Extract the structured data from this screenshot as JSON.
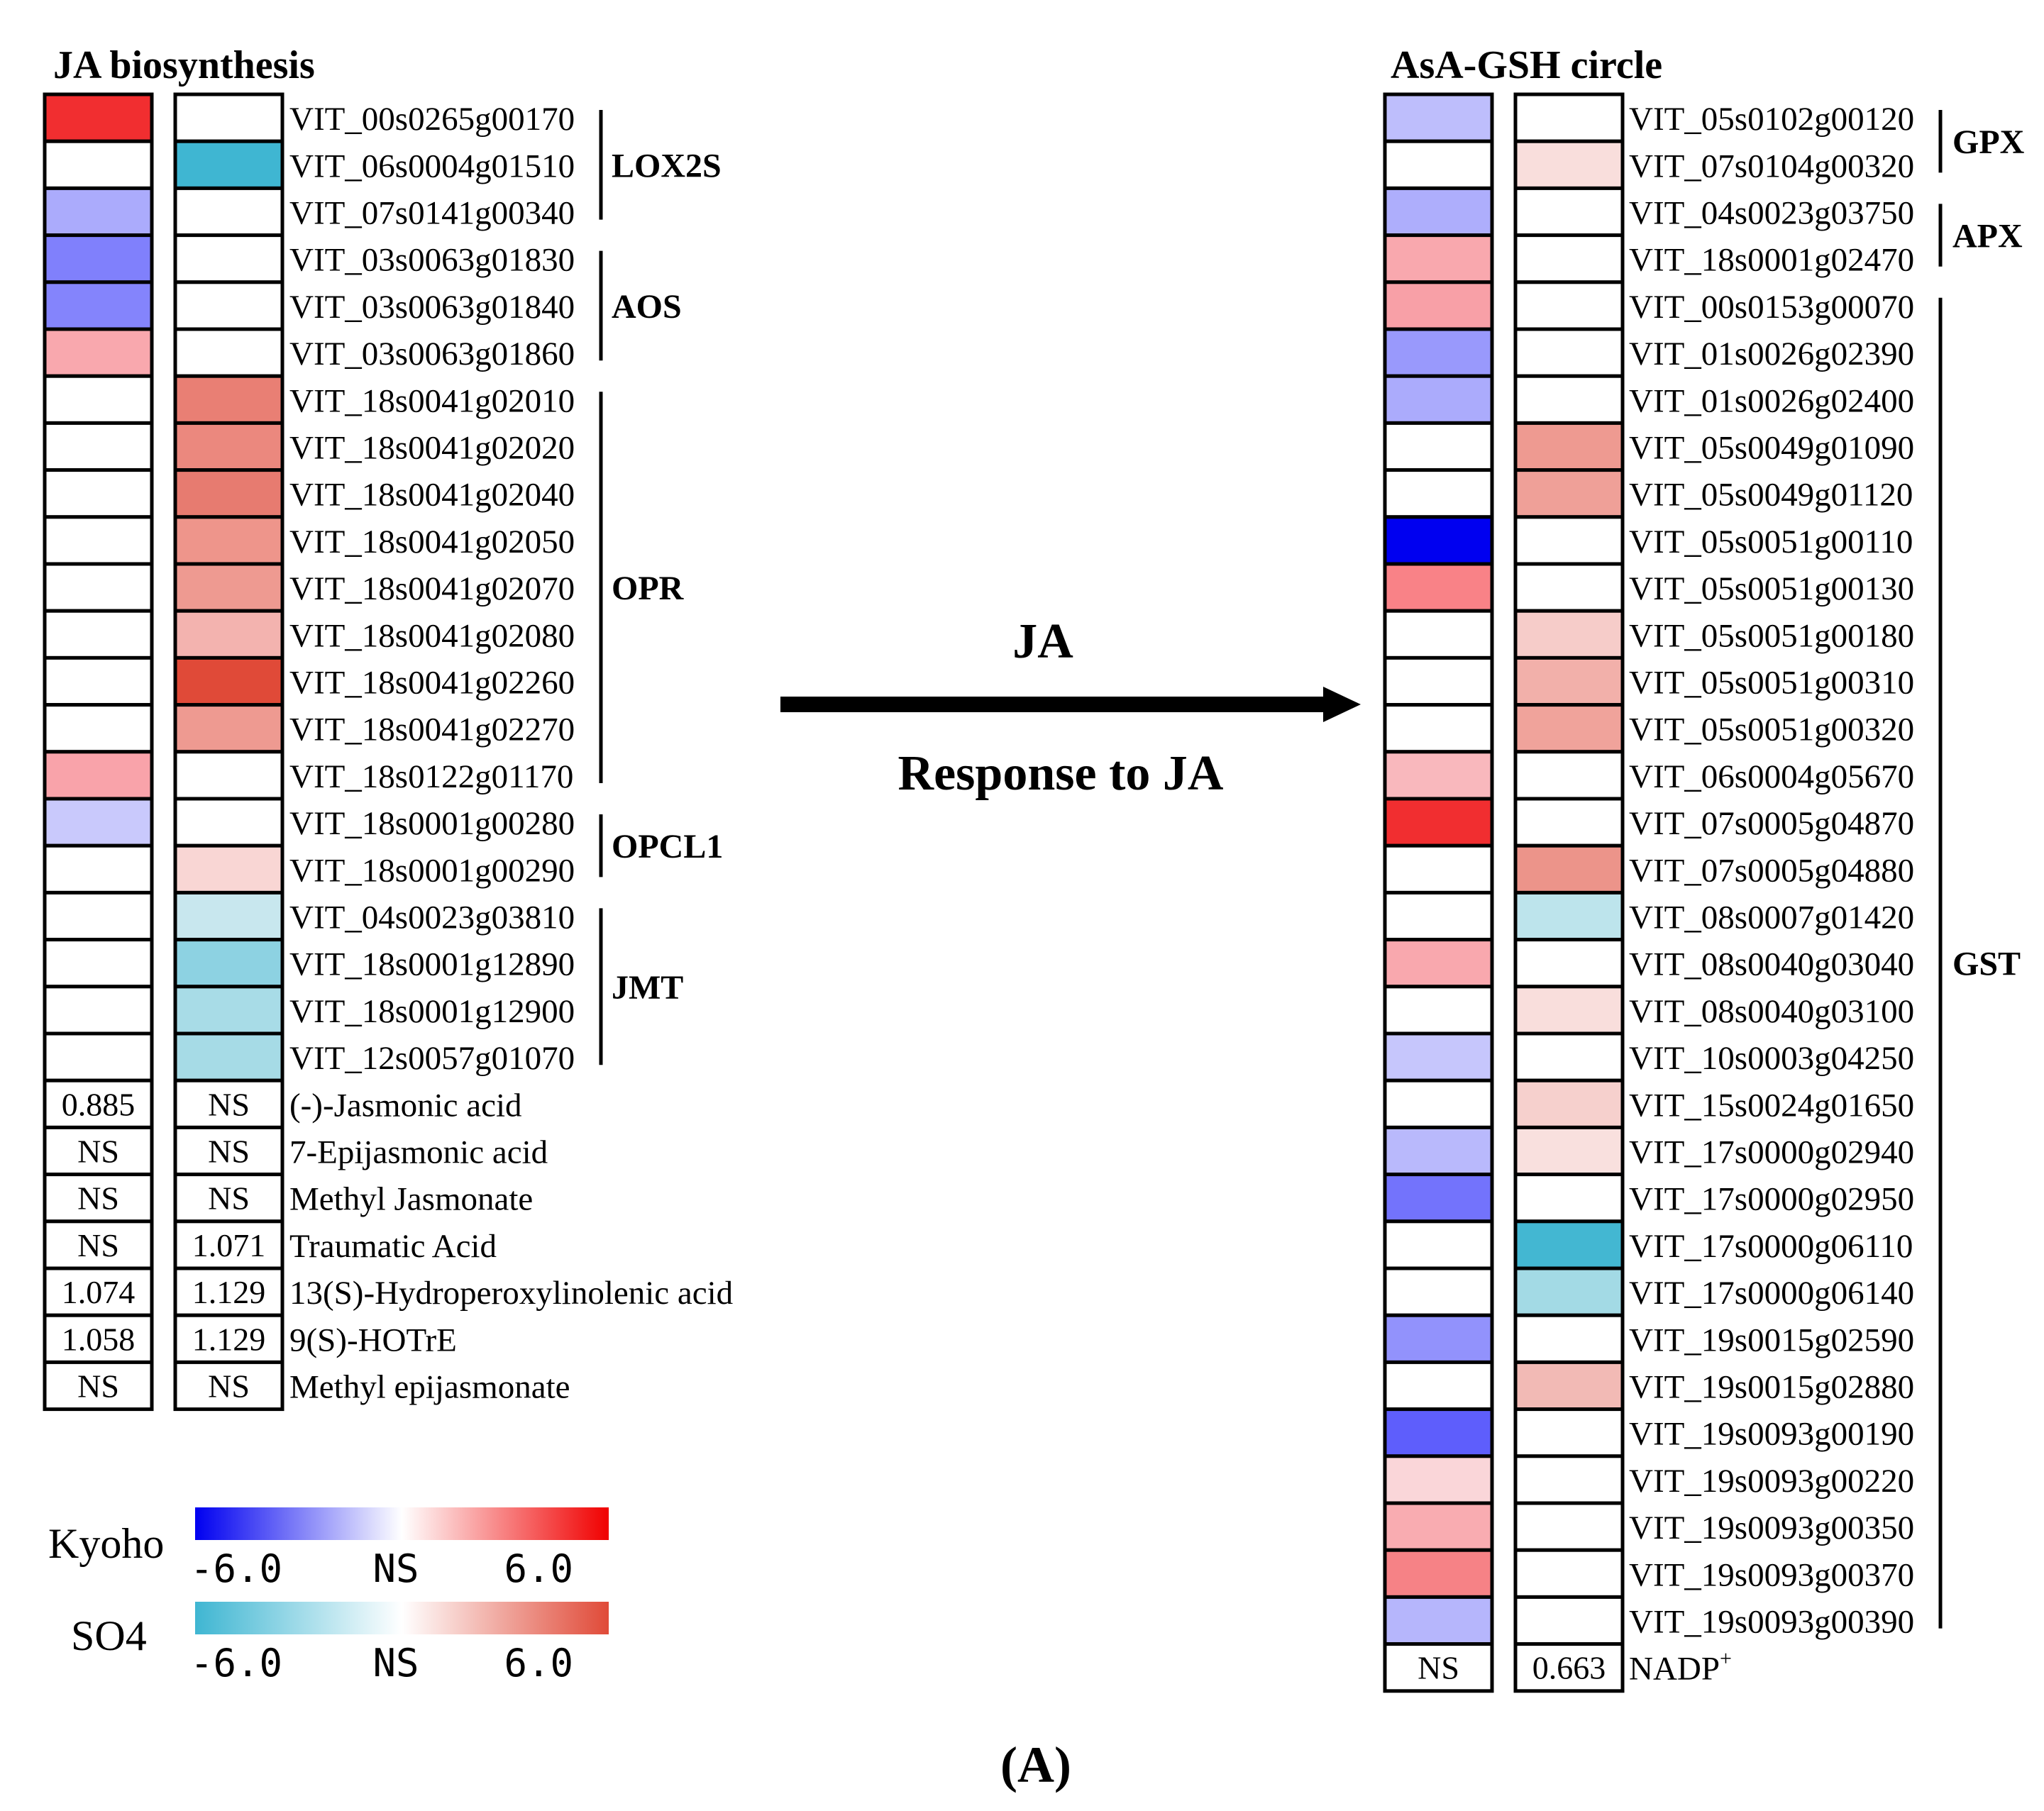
{
  "left_panel": {
    "title": "JA biosynthesis",
    "rows": [
      {
        "label": "VIT_00s0265g00170",
        "kyoho": "#F12E30",
        "so4": "#FFFFFF"
      },
      {
        "label": "VIT_06s0004g01510",
        "kyoho": "#FFFFFF",
        "so4": "#3FB6D2"
      },
      {
        "label": "VIT_07s0141g00340",
        "kyoho": "#ABABFC",
        "so4": "#FFFFFF"
      },
      {
        "label": "VIT_03s0063g01830",
        "kyoho": "#8080FC",
        "so4": "#FFFFFF"
      },
      {
        "label": "VIT_03s0063g01840",
        "kyoho": "#8484FC",
        "so4": "#FFFFFF"
      },
      {
        "label": "VIT_03s0063g01860",
        "kyoho": "#F9A8AE",
        "so4": "#FFFFFF"
      },
      {
        "label": "VIT_18s0041g02010",
        "kyoho": "#FFFFFF",
        "so4": "#E97F74"
      },
      {
        "label": "VIT_18s0041g02020",
        "kyoho": "#FFFFFF",
        "so4": "#EB887E"
      },
      {
        "label": "VIT_18s0041g02040",
        "kyoho": "#FFFFFF",
        "so4": "#E77B70"
      },
      {
        "label": "VIT_18s0041g02050",
        "kyoho": "#FFFFFF",
        "so4": "#EE958B"
      },
      {
        "label": "VIT_18s0041g02070",
        "kyoho": "#FFFFFF",
        "so4": "#EE9A91"
      },
      {
        "label": "VIT_18s0041g02080",
        "kyoho": "#FFFFFF",
        "so4": "#F3B3AF"
      },
      {
        "label": "VIT_18s0041g02260",
        "kyoho": "#FFFFFF",
        "so4": "#E04A38"
      },
      {
        "label": "VIT_18s0041g02270",
        "kyoho": "#FFFFFF",
        "so4": "#EE9A91"
      },
      {
        "label": "VIT_18s0122g01170",
        "kyoho": "#F9A3AA",
        "so4": "#FFFFFF"
      },
      {
        "label": "VIT_18s0001g00280",
        "kyoho": "#C9C9FC",
        "so4": "#FFFFFF"
      },
      {
        "label": "VIT_18s0001g00290",
        "kyoho": "#FFFFFF",
        "so4": "#F9D6D4"
      },
      {
        "label": "VIT_04s0023g03810",
        "kyoho": "#FFFFFF",
        "so4": "#C8E7EE"
      },
      {
        "label": "VIT_18s0001g12890",
        "kyoho": "#FFFFFF",
        "so4": "#8DD2E2"
      },
      {
        "label": "VIT_18s0001g12900",
        "kyoho": "#FFFFFF",
        "so4": "#A8DCE7"
      },
      {
        "label": "VIT_12s0057g01070",
        "kyoho": "#FFFFFF",
        "so4": "#A6DBE6"
      }
    ],
    "metabolites": [
      {
        "label": "(-)-Jasmonic acid",
        "kyoho": "0.885",
        "so4": "NS"
      },
      {
        "label": "7-Epijasmonic acid",
        "kyoho": "NS",
        "so4": "NS"
      },
      {
        "label": "Methyl Jasmonate",
        "kyoho": "NS",
        "so4": "NS"
      },
      {
        "label": "Traumatic Acid",
        "kyoho": "NS",
        "so4": "1.071"
      },
      {
        "label": "13(S)-Hydroperoxylinolenic acid",
        "kyoho": "1.074",
        "so4": "1.129"
      },
      {
        "label": "9(S)-HOTrE",
        "kyoho": "1.058",
        "so4": "1.129"
      },
      {
        "label": "Methyl epijasmonate",
        "kyoho": "NS",
        "so4": "NS"
      }
    ],
    "groups": [
      {
        "name": "LOX2S",
        "start": 0,
        "end": 2
      },
      {
        "name": "AOS",
        "start": 3,
        "end": 5
      },
      {
        "name": "OPR",
        "start": 6,
        "end": 14
      },
      {
        "name": "OPCL1",
        "start": 15,
        "end": 16
      },
      {
        "name": "JMT",
        "start": 17,
        "end": 20
      }
    ]
  },
  "right_panel": {
    "title": "AsA-GSH circle",
    "rows": [
      {
        "label": "VIT_05s0102g00120",
        "kyoho": "#BEBEFC",
        "so4": "#FFFFFF"
      },
      {
        "label": "VIT_07s0104g00320",
        "kyoho": "#FFFFFF",
        "so4": "#F9DEDC"
      },
      {
        "label": "VIT_04s0023g03750",
        "kyoho": "#AEAEFC",
        "so4": "#FFFFFF"
      },
      {
        "label": "VIT_18s0001g02470",
        "kyoho": "#F9A8AE",
        "so4": "#FFFFFF"
      },
      {
        "label": "VIT_00s0153g00070",
        "kyoho": "#F8A0A7",
        "so4": "#FFFFFF"
      },
      {
        "label": "VIT_01s0026g02390",
        "kyoho": "#9999FC",
        "so4": "#FFFFFF"
      },
      {
        "label": "VIT_01s0026g02400",
        "kyoho": "#ABABFC",
        "so4": "#FFFFFF"
      },
      {
        "label": "VIT_05s0049g01090",
        "kyoho": "#FFFFFF",
        "so4": "#EE9A91"
      },
      {
        "label": "VIT_05s0049g01120",
        "kyoho": "#FFFFFF",
        "so4": "#EFA098"
      },
      {
        "label": "VIT_05s0051g00110",
        "kyoho": "#0000F0",
        "so4": "#FFFFFF"
      },
      {
        "label": "VIT_05s0051g00130",
        "kyoho": "#F98287",
        "so4": "#FFFFFF"
      },
      {
        "label": "VIT_05s0051g00180",
        "kyoho": "#FFFFFF",
        "so4": "#F6CCC9"
      },
      {
        "label": "VIT_05s0051g00310",
        "kyoho": "#FFFFFF",
        "so4": "#F2B0AA"
      },
      {
        "label": "VIT_05s0051g00320",
        "kyoho": "#FFFFFF",
        "so4": "#F0A39B"
      },
      {
        "label": "VIT_06s0004g05670",
        "kyoho": "#F9B8BD",
        "so4": "#FFFFFF"
      },
      {
        "label": "VIT_07s0005g04870",
        "kyoho": "#F12E30",
        "so4": "#FFFFFF"
      },
      {
        "label": "VIT_07s0005g04880",
        "kyoho": "#FFFFFF",
        "so4": "#EC948A"
      },
      {
        "label": "VIT_08s0007g01420",
        "kyoho": "#FFFFFF",
        "so4": "#BDE4EC"
      },
      {
        "label": "VIT_08s0040g03040",
        "kyoho": "#F9A8AE",
        "so4": "#FFFFFF"
      },
      {
        "label": "VIT_08s0040g03100",
        "kyoho": "#FFFFFF",
        "so4": "#F9DEDC"
      },
      {
        "label": "VIT_10s0003g04250",
        "kyoho": "#C6C6FC",
        "so4": "#FFFFFF"
      },
      {
        "label": "VIT_15s0024g01650",
        "kyoho": "#FFFFFF",
        "so4": "#F6D0CD"
      },
      {
        "label": "VIT_17s0000g02940",
        "kyoho": "#B9B9FC",
        "so4": "#F9E0DE"
      },
      {
        "label": "VIT_17s0000g02950",
        "kyoho": "#7373FC",
        "so4": "#FFFFFF"
      },
      {
        "label": "VIT_17s0000g06110",
        "kyoho": "#FFFFFF",
        "so4": "#43B7D2"
      },
      {
        "label": "VIT_17s0000g06140",
        "kyoho": "#FFFFFF",
        "so4": "#A3DAE5"
      },
      {
        "label": "VIT_19s0015g02590",
        "kyoho": "#9292FC",
        "so4": "#FFFFFF"
      },
      {
        "label": "VIT_19s0015g02880",
        "kyoho": "#FFFFFF",
        "so4": "#F2BAB5"
      },
      {
        "label": "VIT_19s0093g00190",
        "kyoho": "#5E5EFC",
        "so4": "#FFFFFF"
      },
      {
        "label": "VIT_19s0093g00220",
        "kyoho": "#FAD6D9",
        "so4": "#FFFFFF"
      },
      {
        "label": "VIT_19s0093g00350",
        "kyoho": "#F9ACB1",
        "so4": "#FFFFFF"
      },
      {
        "label": "VIT_19s0093g00370",
        "kyoho": "#F68286",
        "so4": "#FFFFFF"
      },
      {
        "label": "VIT_19s0093g00390",
        "kyoho": "#B6B6FC",
        "so4": "#FFFFFF"
      }
    ],
    "metabolite": {
      "label": "NADP",
      "superscript": "+",
      "kyoho": "NS",
      "so4": "0.663"
    },
    "groups": [
      {
        "name": "GPX",
        "start": 0,
        "end": 1
      },
      {
        "name": "APX",
        "start": 2,
        "end": 3
      },
      {
        "name": "GST",
        "start": 4,
        "end": 32
      }
    ]
  },
  "arrow": {
    "label_top": "JA",
    "label_bottom": "Response to JA"
  },
  "legend": {
    "kyoho": {
      "label": "Kyoho",
      "min": "-6.0",
      "mid": "NS",
      "max": "6.0",
      "colors": [
        "#0000F0",
        "#FFFFFF",
        "#F00000"
      ]
    },
    "so4": {
      "label": "SO4",
      "min": "-6.0",
      "mid": "NS",
      "max": "6.0",
      "colors": [
        "#3FB6D2",
        "#FFFFFF",
        "#E04A38"
      ]
    }
  },
  "panel_label": "(A)"
}
